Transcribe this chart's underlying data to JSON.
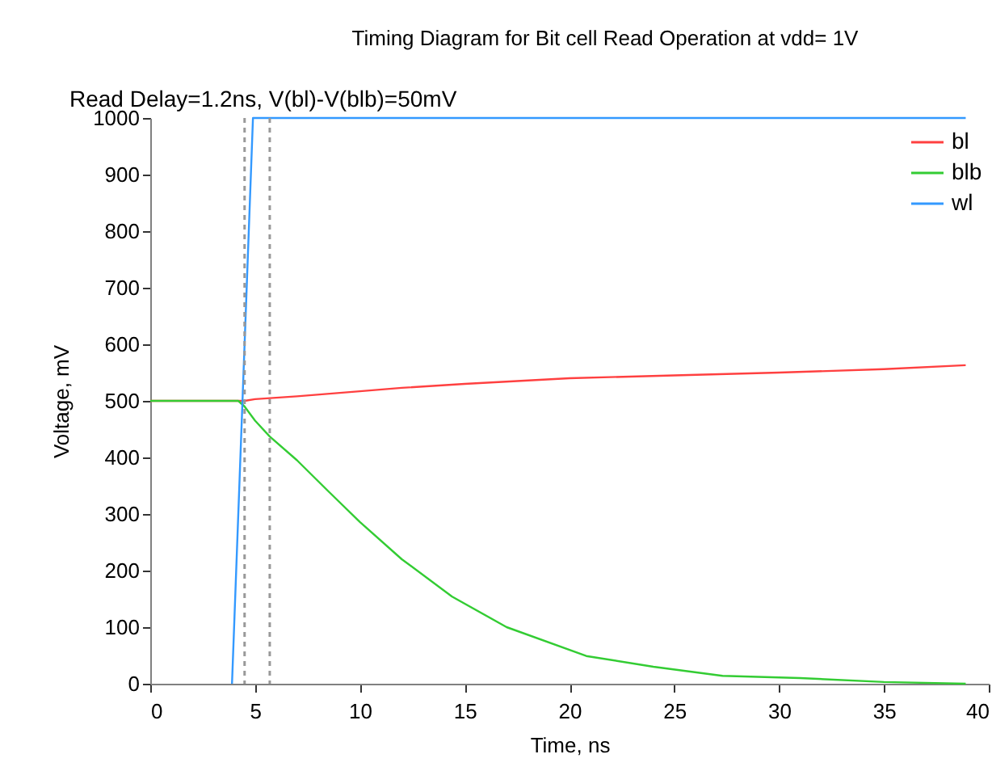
{
  "chart_data": {
    "type": "line",
    "title": "Timing Diagram for Bit cell Read Operation at vdd= 1V",
    "annotations": [
      "Read Delay=1.2ns, V(bl)-V(blb)=50mV"
    ],
    "xlabel": "Time, ns",
    "ylabel": "Voltage, mV",
    "xlim": [
      0,
      40
    ],
    "xticks": [
      0,
      5,
      10,
      15,
      20,
      25,
      30,
      35,
      40
    ],
    "ylim": [
      0,
      1000
    ],
    "yticks": [
      0,
      100,
      200,
      300,
      400,
      500,
      600,
      700,
      800,
      900,
      1000
    ],
    "grid": false,
    "legend": "top right",
    "marker": "none",
    "line_style": "solid",
    "series": [
      {
        "name": "bl",
        "color": "#ff4040",
        "x": [
          0,
          4.5,
          5,
          7,
          10,
          12,
          15,
          20,
          25,
          30,
          35,
          38.9
        ],
        "values": [
          500,
          500,
          503,
          508,
          517,
          523,
          530,
          540,
          545,
          550,
          556,
          563
        ]
      },
      {
        "name": "blb",
        "color": "#33cc33",
        "x": [
          0,
          4.2,
          4.5,
          5,
          5.7,
          7,
          8.5,
          10,
          12,
          14.4,
          17,
          20.8,
          24,
          27.3,
          31,
          35,
          38.9
        ],
        "values": [
          500,
          500,
          490,
          465,
          437,
          395,
          340,
          286,
          220,
          154,
          100,
          49,
          30,
          14,
          10,
          3,
          0
        ]
      },
      {
        "name": "wl",
        "color": "#3399ff",
        "x": [
          3.9,
          4.9,
          38.9
        ],
        "values": [
          0,
          1000,
          1000
        ]
      }
    ],
    "ref_lines": [
      {
        "axis": "x",
        "value": 4.5,
        "color": "#999999",
        "line_style": "dashed"
      },
      {
        "axis": "x",
        "value": 5.7,
        "color": "#999999",
        "line_style": "dashed"
      }
    ]
  }
}
